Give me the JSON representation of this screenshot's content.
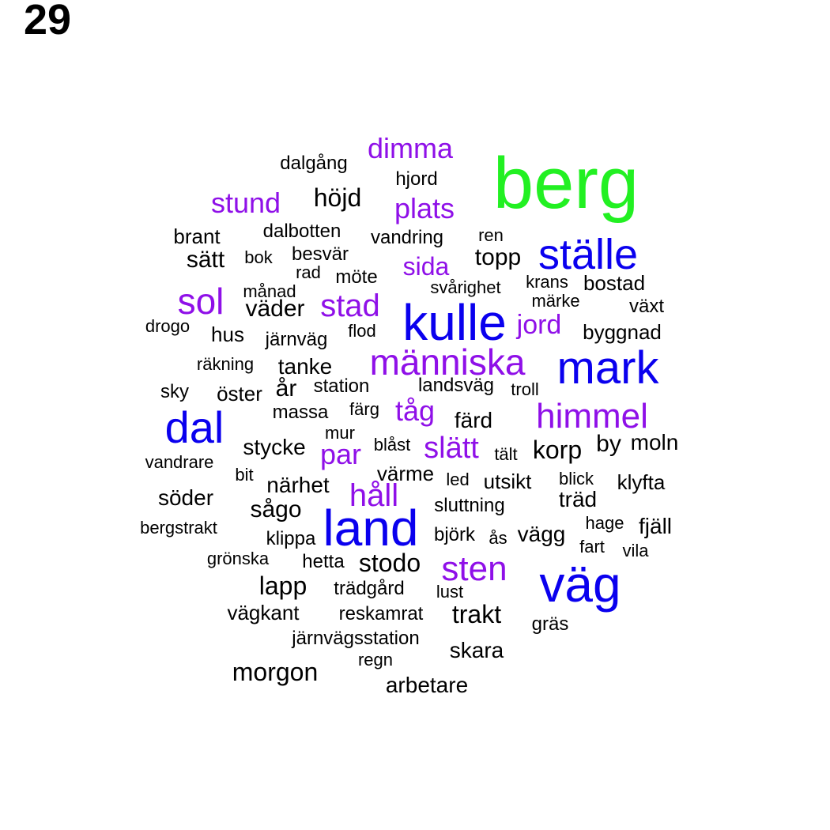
{
  "page_number": "29",
  "colors": {
    "green": "#22f022",
    "blue": "#0a00ee",
    "purple": "#8f10e8",
    "black": "#000000"
  },
  "words": [
    {
      "text": "berg",
      "color": "green"
    },
    {
      "text": "väg",
      "color": "blue"
    },
    {
      "text": "kulle",
      "color": "blue"
    },
    {
      "text": "land",
      "color": "blue"
    },
    {
      "text": "mark",
      "color": "blue"
    },
    {
      "text": "ställe",
      "color": "blue"
    },
    {
      "text": "dal",
      "color": "blue"
    },
    {
      "text": "människa",
      "color": "purple"
    },
    {
      "text": "himmel",
      "color": "purple"
    },
    {
      "text": "sten",
      "color": "purple"
    },
    {
      "text": "sol",
      "color": "purple"
    },
    {
      "text": "stad",
      "color": "purple"
    },
    {
      "text": "dimma",
      "color": "purple"
    },
    {
      "text": "stund",
      "color": "purple"
    },
    {
      "text": "plats",
      "color": "purple"
    },
    {
      "text": "sida",
      "color": "purple"
    },
    {
      "text": "jord",
      "color": "purple"
    },
    {
      "text": "tåg",
      "color": "purple"
    },
    {
      "text": "slätt",
      "color": "purple"
    },
    {
      "text": "par",
      "color": "purple"
    },
    {
      "text": "håll",
      "color": "purple"
    },
    {
      "text": "höjd",
      "color": "black"
    },
    {
      "text": "topp",
      "color": "black"
    },
    {
      "text": "korp",
      "color": "black"
    },
    {
      "text": "morgon",
      "color": "black"
    },
    {
      "text": "lapp",
      "color": "black"
    },
    {
      "text": "stodo",
      "color": "black"
    },
    {
      "text": "trakt",
      "color": "black"
    },
    {
      "text": "skara",
      "color": "black"
    },
    {
      "text": "arbetare",
      "color": "black"
    },
    {
      "text": "söder",
      "color": "black"
    },
    {
      "text": "sågo",
      "color": "black"
    },
    {
      "text": "by",
      "color": "black"
    },
    {
      "text": "moln",
      "color": "black"
    },
    {
      "text": "fjäll",
      "color": "black"
    },
    {
      "text": "träd",
      "color": "black"
    },
    {
      "text": "vägg",
      "color": "black"
    },
    {
      "text": "år",
      "color": "black"
    },
    {
      "text": "tanke",
      "color": "black"
    },
    {
      "text": "väder",
      "color": "black"
    },
    {
      "text": "hus",
      "color": "black"
    },
    {
      "text": "sätt",
      "color": "black"
    },
    {
      "text": "brant",
      "color": "black"
    },
    {
      "text": "stycke",
      "color": "black"
    },
    {
      "text": "närhet",
      "color": "black"
    },
    {
      "text": "färd",
      "color": "black"
    },
    {
      "text": "klyfta",
      "color": "black"
    },
    {
      "text": "utsikt",
      "color": "black"
    },
    {
      "text": "värme",
      "color": "black"
    },
    {
      "text": "vägkant",
      "color": "black"
    },
    {
      "text": "reskamrat",
      "color": "black"
    },
    {
      "text": "järnvägsstation",
      "color": "black"
    },
    {
      "text": "regn",
      "color": "black"
    },
    {
      "text": "trädgård",
      "color": "black"
    },
    {
      "text": "hetta",
      "color": "black"
    },
    {
      "text": "lust",
      "color": "black"
    },
    {
      "text": "björk",
      "color": "black"
    },
    {
      "text": "ås",
      "color": "black"
    },
    {
      "text": "klippa",
      "color": "black"
    },
    {
      "text": "grönska",
      "color": "black"
    },
    {
      "text": "bergstrakt",
      "color": "black"
    },
    {
      "text": "sluttning",
      "color": "black"
    },
    {
      "text": "hage",
      "color": "black"
    },
    {
      "text": "fart",
      "color": "black"
    },
    {
      "text": "vila",
      "color": "black"
    },
    {
      "text": "gräs",
      "color": "black"
    },
    {
      "text": "blick",
      "color": "black"
    },
    {
      "text": "led",
      "color": "black"
    },
    {
      "text": "bit",
      "color": "black"
    },
    {
      "text": "vandrare",
      "color": "black"
    },
    {
      "text": "mur",
      "color": "black"
    },
    {
      "text": "blåst",
      "color": "black"
    },
    {
      "text": "tält",
      "color": "black"
    },
    {
      "text": "massa",
      "color": "black"
    },
    {
      "text": "färg",
      "color": "black"
    },
    {
      "text": "sky",
      "color": "black"
    },
    {
      "text": "öster",
      "color": "black"
    },
    {
      "text": "station",
      "color": "black"
    },
    {
      "text": "landsväg",
      "color": "black"
    },
    {
      "text": "troll",
      "color": "black"
    },
    {
      "text": "räkning",
      "color": "black"
    },
    {
      "text": "drogo",
      "color": "black"
    },
    {
      "text": "järnväg",
      "color": "black"
    },
    {
      "text": "flod",
      "color": "black"
    },
    {
      "text": "byggnad",
      "color": "black"
    },
    {
      "text": "växt",
      "color": "black"
    },
    {
      "text": "märke",
      "color": "black"
    },
    {
      "text": "krans",
      "color": "black"
    },
    {
      "text": "bostad",
      "color": "black"
    },
    {
      "text": "svårighet",
      "color": "black"
    },
    {
      "text": "möte",
      "color": "black"
    },
    {
      "text": "månad",
      "color": "black"
    },
    {
      "text": "rad",
      "color": "black"
    },
    {
      "text": "besvär",
      "color": "black"
    },
    {
      "text": "bok",
      "color": "black"
    },
    {
      "text": "dalbotten",
      "color": "black"
    },
    {
      "text": "vandring",
      "color": "black"
    },
    {
      "text": "ren",
      "color": "black"
    },
    {
      "text": "hjord",
      "color": "black"
    },
    {
      "text": "dalgång",
      "color": "black"
    }
  ]
}
